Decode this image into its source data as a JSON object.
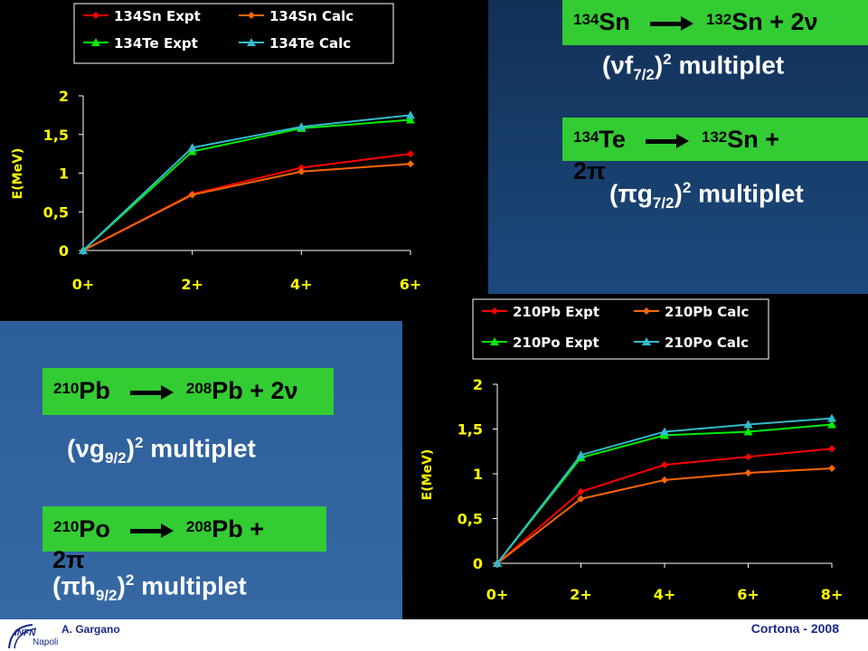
{
  "boxes": {
    "sn134": {
      "parent_mass": "134",
      "parent": "Sn",
      "daughter_mass": "132",
      "daughter": "Sn + 2ν"
    },
    "te134": {
      "parent_mass": "134",
      "parent": "Te",
      "daughter_mass": "132",
      "daughter": "Sn +",
      "line2": "2π"
    },
    "pb210": {
      "parent_mass": "210",
      "parent": "Pb",
      "daughter_mass": "208",
      "daughter": "Pb + 2ν"
    },
    "po210": {
      "parent_mass": "210",
      "parent": "Po",
      "daughter_mass": "208",
      "daughter": "Pb +",
      "line2": "2π"
    }
  },
  "multiplets": {
    "sn134": {
      "open": "(νf",
      "sub": "7/2",
      "close": ")",
      "sup": "2",
      "text": " multiplet"
    },
    "te134": {
      "open": "(πg",
      "sub": "7/2",
      "close": ")",
      "sup": "2",
      "text": " multiplet"
    },
    "pb210": {
      "open": "(νg",
      "sub": "9/2",
      "close": ")",
      "sup": "2",
      "text": " multiplet"
    },
    "po210": {
      "open": "(πh",
      "sub": "9/2",
      "close": ")",
      "sup": "2",
      "text": " multiplet"
    }
  },
  "footer": {
    "author": "A. Gargano",
    "conference": "Cortona - 2008",
    "logo_text": "Napoli",
    "logo_infn": "INFN"
  },
  "colors": {
    "red": "#ff0000",
    "orange": "#ff6600",
    "green": "#00ee00",
    "cyan": "#33bbcc",
    "tick": "#ffff00"
  },
  "chart_data": [
    {
      "type": "line",
      "categories": [
        "0+",
        "2+",
        "4+",
        "6+"
      ],
      "ylabel": "E(MeV)",
      "ylim": [
        0,
        2
      ],
      "yticks": [
        "0",
        "0,5",
        "1",
        "1,5",
        "2"
      ],
      "legend_placement": "top",
      "series": [
        {
          "name": "134Sn Expt",
          "color": "#ff0000",
          "marker": "diamond",
          "values": [
            0,
            0.73,
            1.07,
            1.25
          ]
        },
        {
          "name": "134Sn Calc",
          "color": "#ff6600",
          "marker": "diamond",
          "values": [
            0,
            0.72,
            1.02,
            1.12
          ]
        },
        {
          "name": "134Te Expt",
          "color": "#00ee00",
          "marker": "triangle",
          "values": [
            0,
            1.28,
            1.58,
            1.69
          ]
        },
        {
          "name": "134Te Calc",
          "color": "#33bbcc",
          "marker": "triangle",
          "values": [
            0,
            1.33,
            1.6,
            1.75
          ]
        }
      ]
    },
    {
      "type": "line",
      "categories": [
        "0+",
        "2+",
        "4+",
        "6+",
        "8+"
      ],
      "ylabel": "E(MeV)",
      "ylim": [
        0,
        2
      ],
      "yticks": [
        "0",
        "0,5",
        "1",
        "1,5",
        "2"
      ],
      "legend_placement": "top",
      "series": [
        {
          "name": "210Pb Expt",
          "color": "#ff0000",
          "marker": "diamond",
          "values": [
            0,
            0.8,
            1.1,
            1.19,
            1.28
          ]
        },
        {
          "name": "210Pb Calc",
          "color": "#ff6600",
          "marker": "diamond",
          "values": [
            0,
            0.72,
            0.93,
            1.01,
            1.06
          ]
        },
        {
          "name": "210Po Expt",
          "color": "#00ee00",
          "marker": "triangle",
          "values": [
            0,
            1.18,
            1.43,
            1.47,
            1.55
          ]
        },
        {
          "name": "210Po Calc",
          "color": "#33bbcc",
          "marker": "triangle",
          "values": [
            0,
            1.21,
            1.47,
            1.55,
            1.62
          ]
        }
      ]
    }
  ]
}
